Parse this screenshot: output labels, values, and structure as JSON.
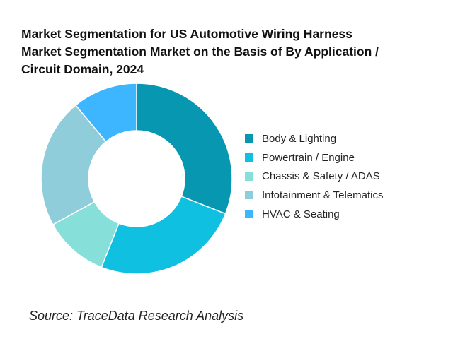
{
  "chart_data": {
    "type": "pie",
    "title_lines": [
      "Market Segmentation for US Automotive Wiring Harness",
      "Market Segmentation Market on the Basis of By Application /",
      "Circuit Domain, 2024"
    ],
    "categories": [
      "Body & Lighting",
      "Powertrain / Engine",
      "Chassis & Safety / ADAS",
      "Infotainment & Telematics",
      "HVAC & Seating"
    ],
    "values": [
      31,
      25,
      11,
      22,
      11
    ],
    "colors": [
      "#0897b1",
      "#10c0e0",
      "#86dfd9",
      "#8ecdd9",
      "#3db6ff"
    ],
    "donut": true,
    "legend_position": "right",
    "source": "Source: TraceData Research Analysis"
  }
}
